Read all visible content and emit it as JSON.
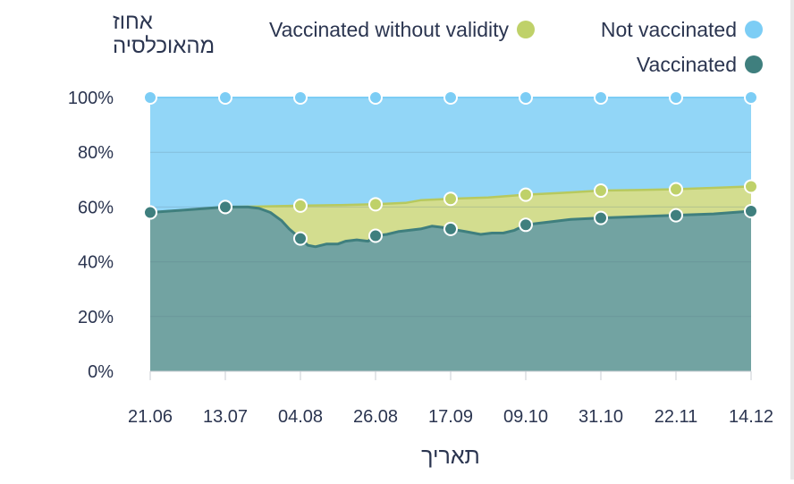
{
  "chart_data": {
    "type": "area",
    "ylabel": "אחוז מהאוכלסיה",
    "ylabel_lines": [
      "אחוז",
      "מהאוכלסיה"
    ],
    "xlabel": "תאריך",
    "ylim": [
      0,
      100
    ],
    "y_ticks": [
      "0%",
      "20%",
      "40%",
      "60%",
      "80%",
      "100%"
    ],
    "y_tick_values": [
      0,
      20,
      40,
      60,
      80,
      100
    ],
    "categories": [
      "21.06",
      "13.07",
      "04.08",
      "26.08",
      "17.09",
      "09.10",
      "31.10",
      "22.11",
      "14.12"
    ],
    "legend_position": "top-right",
    "grid": true,
    "series": [
      {
        "name": "Not vaccinated",
        "color": "#7ccdf5",
        "values": [
          100,
          100,
          100,
          100,
          100,
          100,
          100,
          100,
          100
        ]
      },
      {
        "name": "Vaccinated without validity",
        "color": "#bfd169",
        "values": [
          58,
          60,
          60.5,
          61,
          63,
          64.5,
          66,
          66.5,
          67.5
        ]
      },
      {
        "name": "Vaccinated",
        "color": "#3f7f7e",
        "values": [
          58,
          60,
          48.5,
          49.5,
          52,
          53.5,
          56,
          57,
          58.5
        ]
      }
    ],
    "vaccinated_detail": [
      [
        0,
        58
      ],
      [
        0.5,
        59
      ],
      [
        1,
        60
      ],
      [
        1.3,
        60
      ],
      [
        1.45,
        59.5
      ],
      [
        1.6,
        58
      ],
      [
        1.75,
        55
      ],
      [
        1.85,
        52
      ],
      [
        2,
        48.5
      ],
      [
        2.1,
        46
      ],
      [
        2.2,
        45.5
      ],
      [
        2.35,
        46.5
      ],
      [
        2.5,
        46.5
      ],
      [
        2.6,
        47.5
      ],
      [
        2.75,
        48
      ],
      [
        2.9,
        47.5
      ],
      [
        3,
        49.5
      ],
      [
        3.15,
        50
      ],
      [
        3.3,
        51
      ],
      [
        3.45,
        51.5
      ],
      [
        3.6,
        52
      ],
      [
        3.75,
        53
      ],
      [
        3.9,
        52.5
      ],
      [
        4,
        52
      ],
      [
        4.2,
        51
      ],
      [
        4.4,
        50
      ],
      [
        4.55,
        50.5
      ],
      [
        4.7,
        50.5
      ],
      [
        4.85,
        51.5
      ],
      [
        5,
        53.5
      ],
      [
        5.3,
        54.5
      ],
      [
        5.6,
        55.5
      ],
      [
        6,
        56
      ],
      [
        6.5,
        56.5
      ],
      [
        7,
        57
      ],
      [
        7.5,
        57.5
      ],
      [
        8,
        58.5
      ]
    ],
    "without_validity_detail": [
      [
        0,
        58
      ],
      [
        0.5,
        59
      ],
      [
        1,
        60
      ],
      [
        1.5,
        60.2
      ],
      [
        2,
        60.5
      ],
      [
        2.5,
        60.7
      ],
      [
        3,
        61
      ],
      [
        3.4,
        61.5
      ],
      [
        3.6,
        62.5
      ],
      [
        4,
        63
      ],
      [
        4.5,
        63.5
      ],
      [
        5,
        64.5
      ],
      [
        5.5,
        65.2
      ],
      [
        6,
        66
      ],
      [
        6.5,
        66.2
      ],
      [
        7,
        66.5
      ],
      [
        7.5,
        67
      ],
      [
        8,
        67.5
      ]
    ]
  }
}
